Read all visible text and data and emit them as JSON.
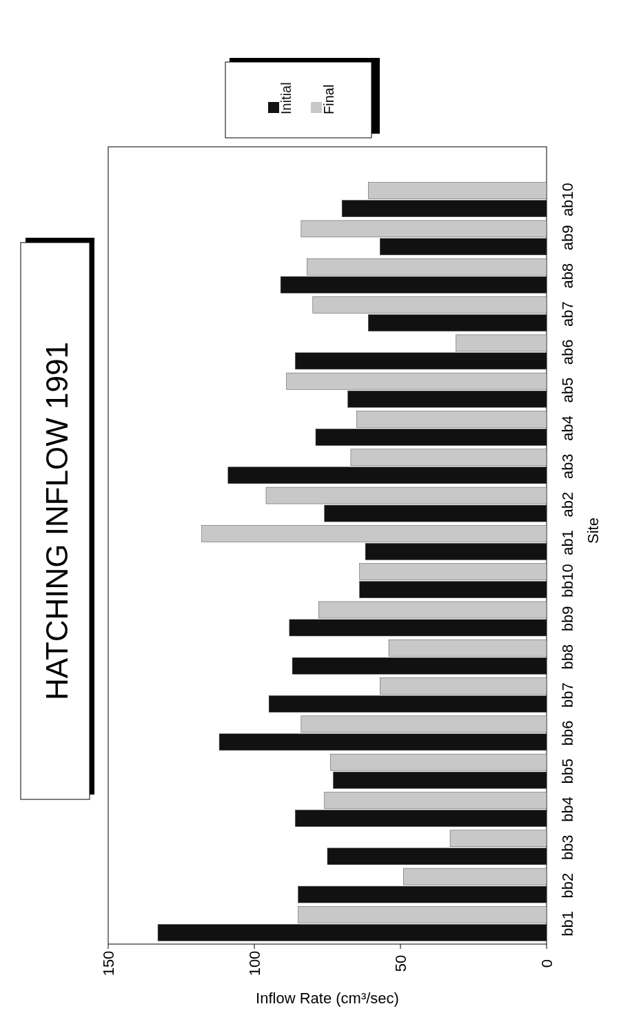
{
  "chart_data": {
    "type": "bar",
    "orientation": "horizontal",
    "title": "HATCHING INFLOW 1991",
    "xlabel": "Inflow Rate (cm³/sec)",
    "ylabel": "Site",
    "categories": [
      "ab10",
      "ab9",
      "ab8",
      "ab7",
      "ab6",
      "ab5",
      "ab4",
      "ab3",
      "ab2",
      "ab1",
      "bb10",
      "bb9",
      "bb8",
      "bb7",
      "bb6",
      "bb5",
      "bb4",
      "bb3",
      "bb2",
      "bb1"
    ],
    "series": [
      {
        "name": "Initial",
        "color": "#111111",
        "values": [
          70,
          57,
          91,
          61,
          86,
          68,
          79,
          109,
          76,
          62,
          64,
          88,
          87,
          95,
          112,
          73,
          86,
          75,
          85,
          133
        ]
      },
      {
        "name": "Final",
        "color": "#c8c8c8",
        "values": [
          61,
          84,
          82,
          80,
          31,
          89,
          65,
          67,
          96,
          118,
          64,
          78,
          54,
          57,
          84,
          74,
          76,
          33,
          49,
          85
        ]
      }
    ],
    "xlim": [
      150,
      0
    ],
    "xticks": [
      150,
      100,
      50,
      0
    ],
    "legend": "top",
    "grid": false
  }
}
